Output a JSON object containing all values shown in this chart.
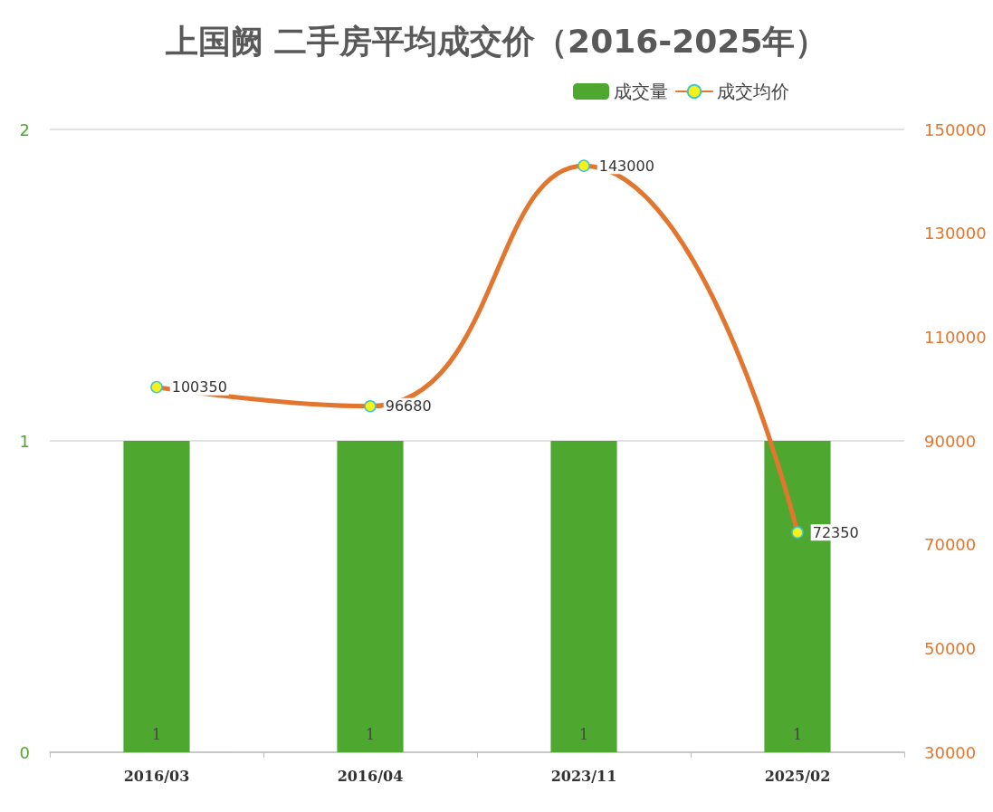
{
  "chart_data": {
    "type": "bar",
    "title": "上国阙 二手房平均成交价（2016-2025年）",
    "categories": [
      "2016/03",
      "2016/04",
      "2023/11",
      "2025/02"
    ],
    "series": [
      {
        "name": "成交量",
        "color": "#4ea72e",
        "values": [
          1,
          1,
          1,
          1
        ]
      },
      {
        "name": "成交均价",
        "type": "line",
        "axis": "y2",
        "color": "#e2762f",
        "values": [
          100350,
          96680,
          143000,
          72350
        ]
      }
    ],
    "ylim": [
      0,
      2
    ],
    "yticks": [
      0,
      1,
      2
    ],
    "y2lim": [
      30000,
      150000
    ],
    "y2ticks": [
      30000,
      50000,
      70000,
      90000,
      110000,
      130000,
      150000
    ],
    "grid": "y",
    "legend": "top right",
    "marker": "circle",
    "line_style": "solid",
    "data_labels": true
  }
}
